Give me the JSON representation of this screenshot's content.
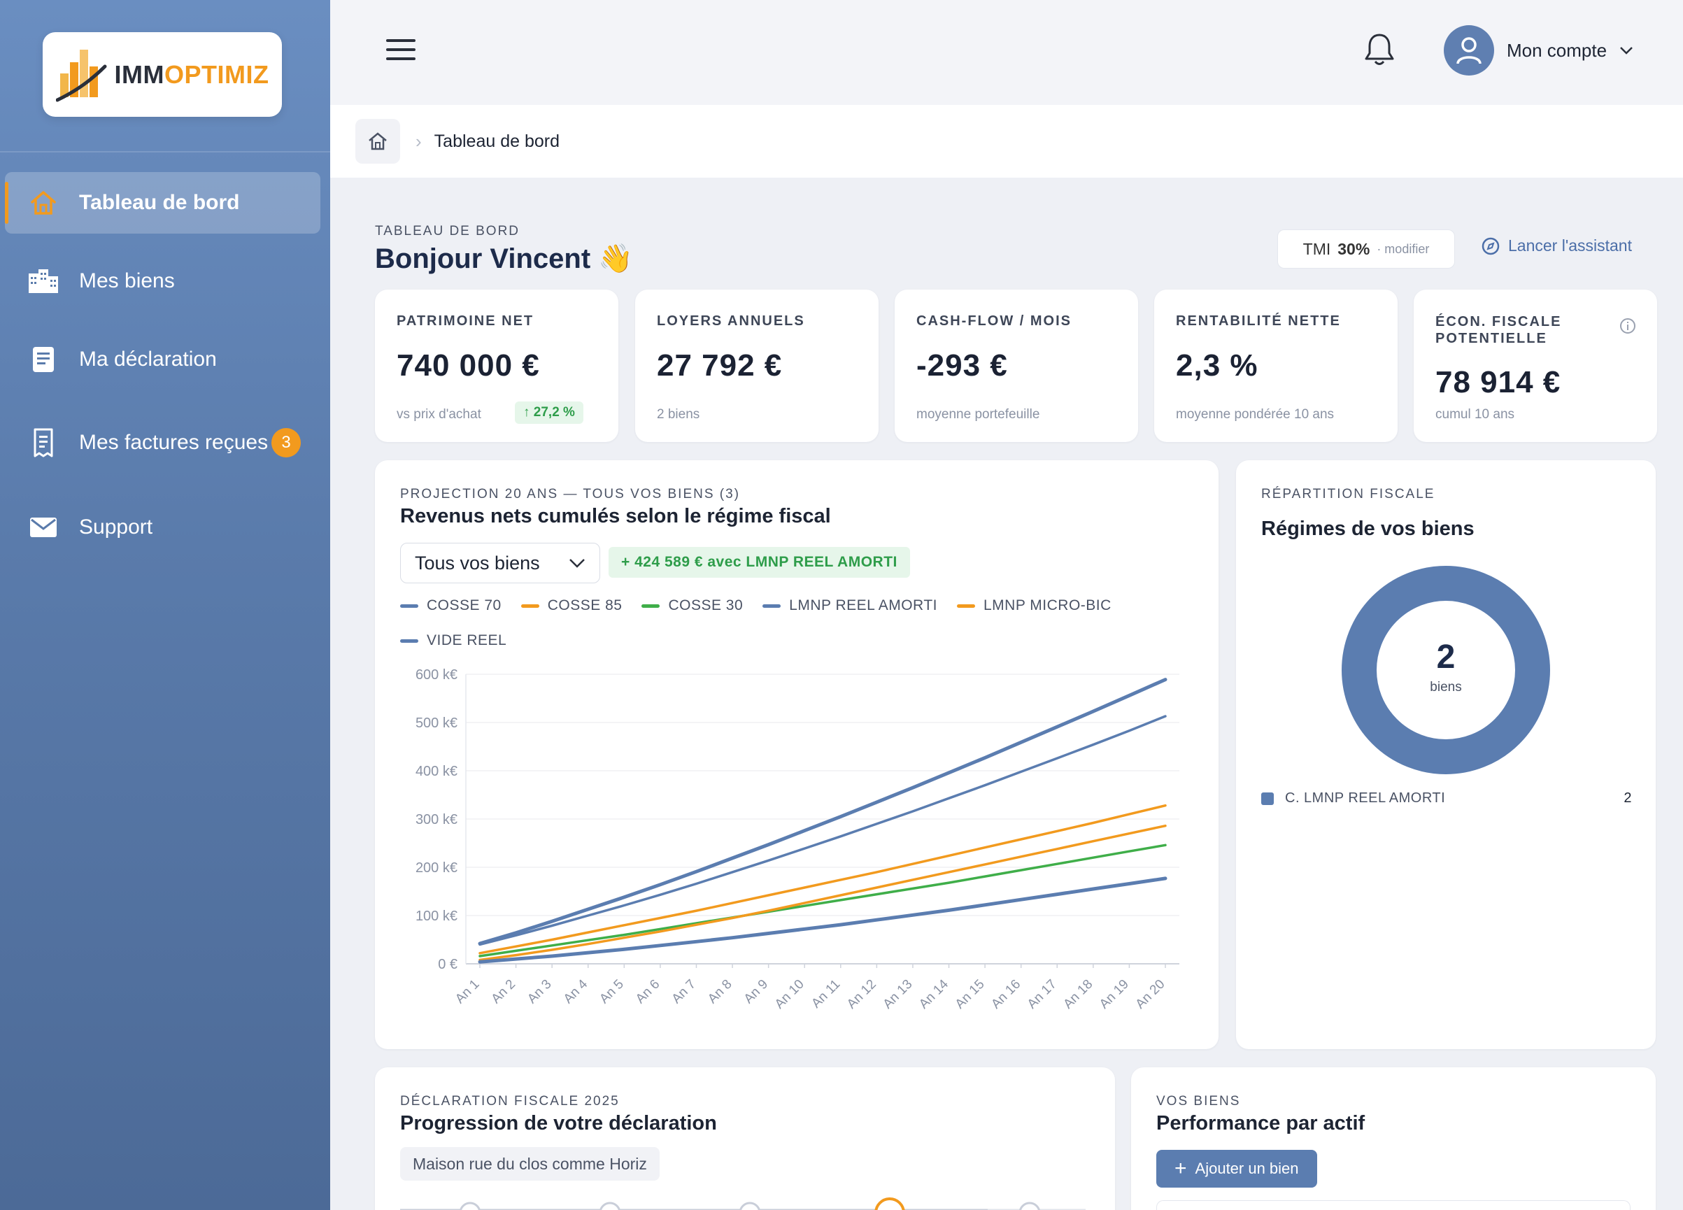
{
  "brand": {
    "logo_part1": "IMM",
    "logo_part2": "OPTIMIZ"
  },
  "sidebar": {
    "items": [
      {
        "label": "Tableau de bord",
        "icon": "home-icon",
        "active": true
      },
      {
        "label": "Mes biens",
        "icon": "buildings-icon"
      },
      {
        "label": "Ma déclaration",
        "icon": "document-icon"
      },
      {
        "label": "Mes factures reçues",
        "icon": "invoice-icon",
        "badge": "3"
      },
      {
        "label": "Support",
        "icon": "mail-icon"
      }
    ]
  },
  "topbar": {
    "account_label": "Mon compte"
  },
  "breadcrumb": {
    "current": "Tableau de bord"
  },
  "header": {
    "eyebrow": "TABLEAU DE BORD",
    "greeting": "Bonjour Vincent 👋",
    "tmi_label": "TMI",
    "tmi_value": "30%",
    "tmi_modify": "· modifier",
    "assistant_label": "Lancer l'assistant"
  },
  "kpis": [
    {
      "label": "PATRIMOINE NET",
      "value": "740 000 €",
      "sub": "vs prix d'achat",
      "badge": "27,2 %"
    },
    {
      "label": "LOYERS ANNUELS",
      "value": "27 792 €",
      "sub": "2 biens"
    },
    {
      "label": "CASH-FLOW / MOIS",
      "value": "-293 €",
      "sub": "moyenne portefeuille"
    },
    {
      "label": "RENTABILITÉ NETTE",
      "value": "2,3 %",
      "sub": "moyenne pondérée 10 ans"
    },
    {
      "label_line1": "ÉCON. FISCALE",
      "label_line2": "POTENTIELLE",
      "value": "78 914 €",
      "sub": "cumul 10 ans"
    }
  ],
  "projection": {
    "eyebrow": "PROJECTION 20 ANS — TOUS VOS BIENS (3)",
    "title": "Revenus nets cumulés selon le régime fiscal",
    "select_value": "Tous vos biens",
    "gain": "+ 424 589 € avec LMNP REEL AMORTI"
  },
  "chart_data": {
    "type": "line",
    "x": [
      "An 1",
      "An 2",
      "An 3",
      "An 4",
      "An 5",
      "An 6",
      "An 7",
      "An 8",
      "An 9",
      "An 10",
      "An 11",
      "An 12",
      "An 13",
      "An 14",
      "An 15",
      "An 16",
      "An 17",
      "An 18",
      "An 19",
      "An 20"
    ],
    "yticks": [
      "0 €",
      "100 k€",
      "200 k€",
      "300 k€",
      "400 k€",
      "500 k€",
      "600 k€"
    ],
    "ylim": [
      0,
      600
    ],
    "series": [
      {
        "name": "COSSE 70",
        "color": "#5b7db0",
        "values": [
          40,
          59,
          79,
          100,
          121,
          143,
          166,
          190,
          214,
          239,
          264,
          290,
          316,
          343,
          370,
          398,
          426,
          454,
          483,
          513
        ]
      },
      {
        "name": "COSSE 85",
        "color": "#f29a1e",
        "values": [
          22,
          36,
          50,
          65,
          80,
          95,
          110,
          126,
          142,
          158,
          174,
          190,
          207,
          224,
          241,
          258,
          275,
          292,
          310,
          328
        ]
      },
      {
        "name": "COSSE 30",
        "color": "#3fae49",
        "values": [
          16,
          27,
          38,
          49,
          60,
          72,
          84,
          96,
          108,
          120,
          132,
          144,
          156,
          168,
          181,
          194,
          207,
          220,
          233,
          246
        ]
      },
      {
        "name": "LMNP REEL AMORTI",
        "color": "#5b7db0",
        "values": [
          42,
          64,
          88,
          113,
          138,
          164,
          191,
          219,
          247,
          276,
          305,
          335,
          365,
          396,
          427,
          459,
          491,
          523,
          556,
          589
        ]
      },
      {
        "name": "LMNP MICRO-BIC",
        "color": "#f29a1e",
        "values": [
          8,
          18,
          29,
          41,
          54,
          67,
          81,
          95,
          110,
          126,
          142,
          158,
          174,
          190,
          206,
          222,
          238,
          254,
          270,
          286
        ]
      },
      {
        "name": "VIDE REEL",
        "color": "#5b7db0",
        "values": [
          4,
          10,
          16,
          23,
          30,
          38,
          46,
          54,
          63,
          72,
          81,
          91,
          101,
          111,
          122,
          133,
          144,
          155,
          166,
          177
        ]
      }
    ]
  },
  "repartition": {
    "eyebrow": "RÉPARTITION FISCALE",
    "title": "Régimes de vos biens",
    "total": "2",
    "total_label": "biens",
    "rows": [
      {
        "label": "C. LMNP REEL AMORTI",
        "count": "2",
        "color": "#5b7db0"
      }
    ]
  },
  "declaration": {
    "eyebrow": "DÉCLARATION FISCALE 2025",
    "title": "Progression de votre déclaration",
    "chip": "Maison rue du clos comme Horiz"
  },
  "biens": {
    "eyebrow": "VOS BIENS",
    "title": "Performance par actif",
    "add_label": "Ajouter un bien"
  }
}
